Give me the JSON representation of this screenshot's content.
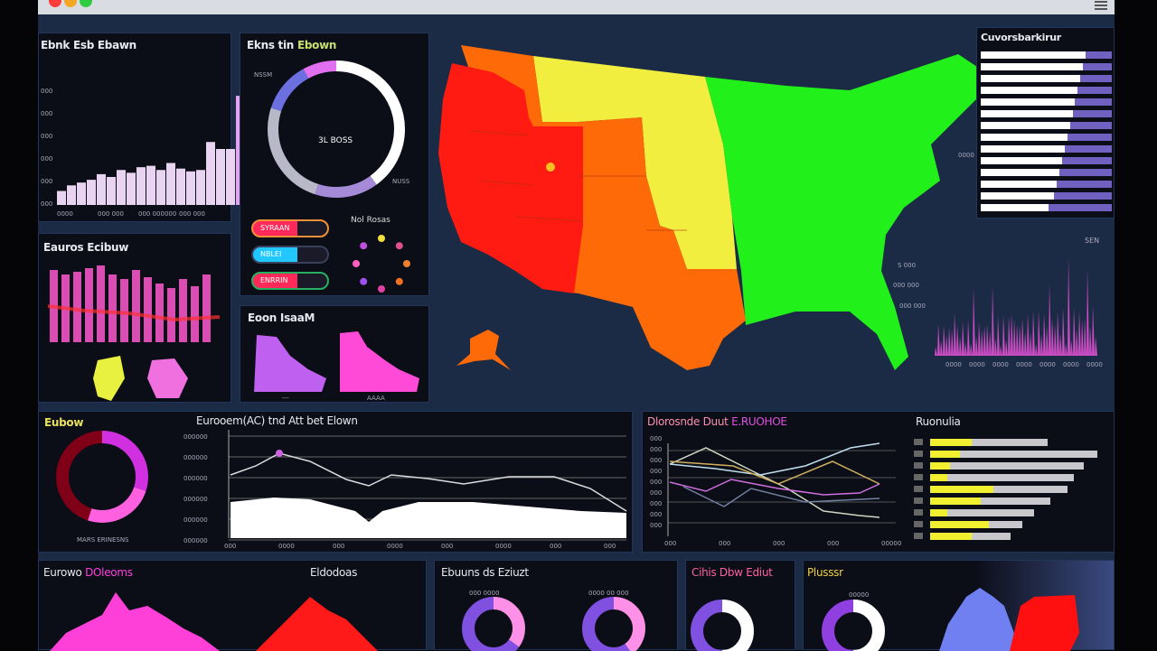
{
  "window": {
    "controls": [
      "close",
      "minimize",
      "maximize"
    ],
    "colors": [
      "#ff3b3b",
      "#f5a623",
      "#2ecc40"
    ],
    "menu_icon": "hamburger-icon"
  },
  "panel_bars": {
    "title": "Ebnk Esb Ebawn",
    "ticks": [
      "000",
      "000",
      "000",
      "000",
      "000",
      "000"
    ],
    "xlabels": [
      "0000",
      "000 000",
      "000 000000",
      "000 000"
    ],
    "values": [
      10,
      14,
      16,
      18,
      22,
      20,
      25,
      23,
      27,
      28,
      25,
      30,
      26,
      24,
      25,
      45,
      40,
      40,
      78
    ],
    "color": "#e8d4f0"
  },
  "panel_donut": {
    "title_a": "Ekns tin",
    "title_b": "Ebown",
    "center": "3L BOSS",
    "label_tl": "NSSM",
    "label_br": "NUSS",
    "segments": [
      {
        "v": 40,
        "c": "#ffffff"
      },
      {
        "v": 15,
        "c": "#a58ad8"
      },
      {
        "v": 25,
        "c": "#b8b8c8"
      },
      {
        "v": 12,
        "c": "#6b6fe0"
      },
      {
        "v": 8,
        "c": "#e070f0"
      }
    ],
    "pills": [
      {
        "label": "SYRAAN",
        "c": "#ff2a5a",
        "b": "#f0903a"
      },
      {
        "label": "NBLEI",
        "c": "#20c8ff",
        "b": "#3a3f5a"
      },
      {
        "label": "ENRRIN",
        "c": "#ff2a5a",
        "b": "#28b060"
      }
    ],
    "dots_title": "Nol Rosas"
  },
  "panel_pink": {
    "title": "Eauros Ecibuw",
    "values": [
      80,
      75,
      78,
      82,
      85,
      75,
      70,
      80,
      72,
      65,
      60,
      70,
      62,
      75
    ],
    "color": "#ff5ad0"
  },
  "panel_shapes": {
    "title": "Eoon IsaaM",
    "labels": [
      "---",
      "AAAA"
    ]
  },
  "map": {
    "regions": [
      {
        "name": "west",
        "c": "#ff1a12"
      },
      {
        "name": "mountain",
        "c": "#ff6a08"
      },
      {
        "name": "plains",
        "c": "#f2ee40"
      },
      {
        "name": "east",
        "c": "#22f01a"
      }
    ],
    "labels": [
      "S 000",
      "000 000",
      "000 000",
      "0000"
    ]
  },
  "right_list": {
    "title": "Cuvorsbarkirur",
    "values": [
      80,
      78,
      76,
      74,
      72,
      70,
      68,
      66,
      64,
      62,
      60,
      58,
      56,
      52
    ]
  },
  "spikes": {
    "label": "SEN",
    "xlabels": [
      "0000",
      "0000",
      "0000",
      "0000",
      "0000",
      "0000",
      "0000"
    ]
  },
  "mid_donut": {
    "title": "Eubow",
    "caption": "MARS ERINESNS"
  },
  "area": {
    "title": "Eurooem(AC) tnd Att bet Elown",
    "ticks": [
      "000000",
      "000000",
      "000000",
      "000000",
      "000000",
      "000000"
    ],
    "xlabels": [
      "000",
      "0000",
      "000",
      "0000",
      "000",
      "0000",
      "000",
      "000"
    ]
  },
  "lines": {
    "title_a": "Dlorosnde Duut",
    "title_b": "E.RUOHOE",
    "ticks": [
      "000",
      "000",
      "000",
      "000",
      "000",
      "000",
      "000",
      "000",
      "000"
    ],
    "xlabels": [
      "000",
      "000",
      "000",
      "000",
      "00000"
    ]
  },
  "hbars": {
    "title": "Ruonulia",
    "values": [
      [
        25,
        70
      ],
      [
        18,
        100
      ],
      [
        12,
        92
      ],
      [
        10,
        86
      ],
      [
        38,
        82
      ],
      [
        30,
        72
      ],
      [
        10,
        62
      ],
      [
        35,
        55
      ],
      [
        25,
        48
      ]
    ]
  },
  "bottom": {
    "p1_a": "Eurowo",
    "p1_b": "DOleoms",
    "p1_c": "Eldodoas",
    "p2": "Ebuuns ds Eziuzt",
    "p2_l1": "000 0000",
    "p2_l2": "0000 00 000",
    "p3": "Cihis Dbw Ediut",
    "p4": "Plusssr",
    "p4_l": "00000"
  }
}
